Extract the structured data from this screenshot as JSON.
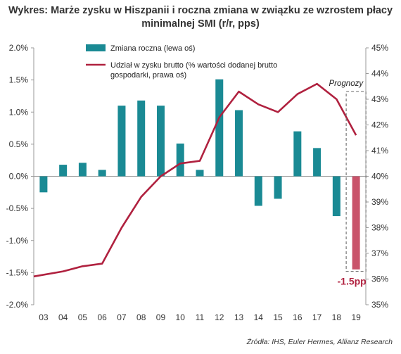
{
  "title_line1": "Wykres: Marże zysku w Hiszpanii i roczna zmiana w związku ze wzrostem płacy",
  "title_line2": "minimalnej SMI (r/r, pps)",
  "source": "Źródła: IHS, Euler Hermes, Allianz Research",
  "colors": {
    "bars": "#1a8a94",
    "forecast_bar": "#c9536a",
    "line": "#b0213f",
    "forecast_label": "#b0213f"
  },
  "chart_data": {
    "type": "bar",
    "categories": [
      "03",
      "04",
      "05",
      "06",
      "07",
      "08",
      "09",
      "10",
      "11",
      "12",
      "13",
      "14",
      "15",
      "16",
      "17",
      "18",
      "19"
    ],
    "series": [
      {
        "name": "Zmiana roczna (lewa oś)",
        "type": "bar",
        "axis": "left",
        "values": [
          -0.25,
          0.18,
          0.21,
          0.1,
          1.1,
          1.18,
          1.1,
          0.51,
          0.1,
          1.51,
          1.03,
          -0.46,
          -0.35,
          0.7,
          0.44,
          -0.62,
          -1.45
        ]
      },
      {
        "name": "Udział w zysku brutto (%  wartości dodanej brutto gospodarki, prawa oś)",
        "type": "line",
        "axis": "right",
        "values": [
          36.1,
          36.3,
          36.5,
          36.6,
          38.0,
          39.2,
          40.0,
          40.5,
          40.6,
          42.3,
          43.3,
          42.8,
          42.5,
          43.2,
          43.6,
          43.0,
          41.6
        ]
      }
    ],
    "y_left": {
      "min": -2.0,
      "max": 2.0,
      "ticks": [
        "-2.0%",
        "-1.5%",
        "-1.0%",
        "-0.5%",
        "0.0%",
        "0.5%",
        "1.0%",
        "1.5%",
        "2.0%"
      ]
    },
    "y_right": {
      "min": 35,
      "max": 45,
      "ticks": [
        "35%",
        "36%",
        "37%",
        "38%",
        "39%",
        "40%",
        "41%",
        "42%",
        "43%",
        "44%",
        "45%"
      ]
    },
    "forecast": {
      "label": "Prognozy",
      "from_category": "19"
    },
    "annotation": "-1.5pp",
    "legend_position": "top-left",
    "grid": false
  }
}
